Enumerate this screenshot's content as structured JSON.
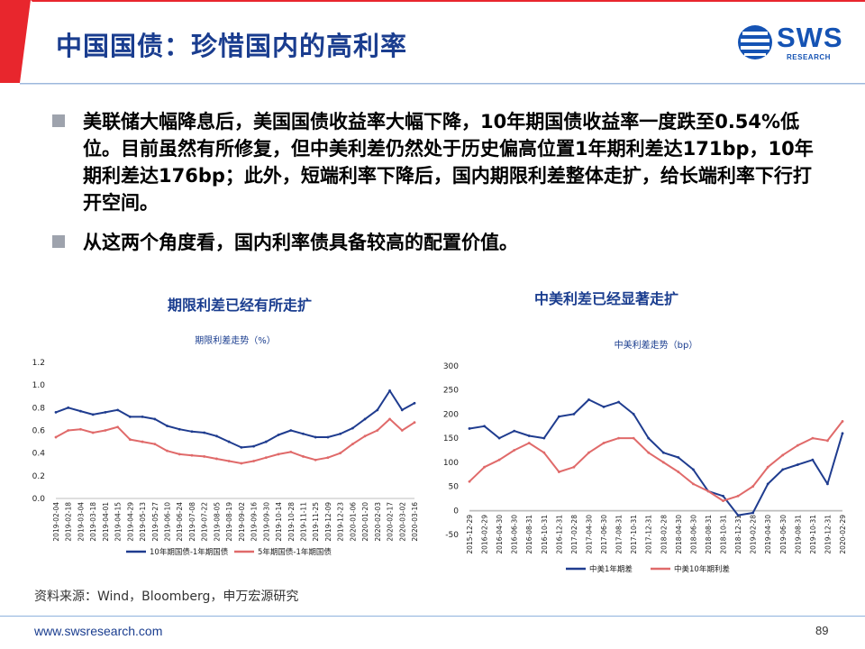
{
  "header": {
    "title": "中国国债：珍惜国内的高利率",
    "logo": {
      "name": "SWS",
      "sub": "RESEARCH"
    }
  },
  "bullets": [
    "美联储大幅降息后，美国国债收益率大幅下降，10年期国债收益率一度跌至0.54%低位。目前虽然有所修复，但中美利差仍然处于历史偏高位置1年期利差达171bp，10年期利差达176bp；此外，短端利率下降后，国内期限利差整体走扩，给长端利率下行打开空间。",
    "从这两个角度看，国内利率债具备较高的配置价值。"
  ],
  "charts": [
    {
      "heading": "期限利差已经有所走扩"
    },
    {
      "heading": "中美利差已经显著走扩"
    }
  ],
  "chart_data": [
    {
      "type": "line",
      "title": "期限利差走势（%）",
      "x": [
        "2019-02-04",
        "2019-02-18",
        "2019-03-04",
        "2019-03-18",
        "2019-04-01",
        "2019-04-15",
        "2019-04-29",
        "2019-05-13",
        "2019-05-27",
        "2019-06-10",
        "2019-06-24",
        "2019-07-08",
        "2019-07-22",
        "2019-08-05",
        "2019-08-19",
        "2019-09-02",
        "2019-09-16",
        "2019-09-30",
        "2019-10-14",
        "2019-10-28",
        "2019-11-11",
        "2019-11-25",
        "2019-12-09",
        "2019-12-23",
        "2020-01-06",
        "2020-01-20",
        "2020-02-03",
        "2020-02-17",
        "2020-03-02",
        "2020-03-16"
      ],
      "ylim": [
        0.0,
        1.2
      ],
      "yticks": [
        "0.0",
        "0.2",
        "0.4",
        "0.6",
        "0.8",
        "1.0",
        "1.2"
      ],
      "series": [
        {
          "name": "10年期国债-1年期国债",
          "color": "#1f3c8f",
          "values": [
            0.76,
            0.8,
            0.77,
            0.74,
            0.76,
            0.78,
            0.72,
            0.72,
            0.7,
            0.64,
            0.61,
            0.59,
            0.58,
            0.55,
            0.5,
            0.45,
            0.46,
            0.5,
            0.56,
            0.6,
            0.57,
            0.54,
            0.54,
            0.57,
            0.62,
            0.7,
            0.78,
            0.95,
            0.78,
            0.84
          ]
        },
        {
          "name": "5年期国债-1年期国债",
          "color": "#e06a6a",
          "values": [
            0.54,
            0.6,
            0.61,
            0.58,
            0.6,
            0.63,
            0.52,
            0.5,
            0.48,
            0.42,
            0.39,
            0.38,
            0.37,
            0.35,
            0.33,
            0.31,
            0.33,
            0.36,
            0.39,
            0.41,
            0.37,
            0.34,
            0.36,
            0.4,
            0.48,
            0.55,
            0.6,
            0.7,
            0.6,
            0.67
          ]
        }
      ]
    },
    {
      "type": "line",
      "title": "中美利差走势（bp）",
      "x": [
        "2015-12-29",
        "2016-02-29",
        "2016-04-30",
        "2016-06-30",
        "2016-08-31",
        "2016-10-31",
        "2016-12-31",
        "2017-02-28",
        "2017-04-30",
        "2017-06-30",
        "2017-08-31",
        "2017-10-31",
        "2017-12-31",
        "2018-02-28",
        "2018-04-30",
        "2018-06-30",
        "2018-08-31",
        "2018-10-31",
        "2018-12-31",
        "2019-02-28",
        "2019-04-30",
        "2019-06-30",
        "2019-08-31",
        "2019-10-31",
        "2019-12-31",
        "2020-02-29"
      ],
      "ylim": [
        -50,
        300
      ],
      "yticks": [
        "-50",
        "0",
        "50",
        "100",
        "150",
        "200",
        "250",
        "300"
      ],
      "series": [
        {
          "name": "中美1年期差",
          "color": "#1f3c8f",
          "values": [
            170,
            175,
            150,
            165,
            155,
            150,
            195,
            200,
            230,
            215,
            225,
            200,
            150,
            120,
            110,
            85,
            40,
            30,
            -10,
            -5,
            55,
            85,
            95,
            105,
            55,
            160
          ]
        },
        {
          "name": "中美10年期利差",
          "color": "#e06a6a",
          "values": [
            60,
            90,
            105,
            125,
            140,
            120,
            80,
            90,
            120,
            140,
            150,
            150,
            120,
            100,
            80,
            55,
            40,
            20,
            30,
            50,
            90,
            115,
            135,
            150,
            145,
            185
          ]
        }
      ]
    }
  ],
  "source": "资料来源：Wind，Bloomberg，申万宏源研究",
  "footer": {
    "url": "www.swsresearch.com",
    "page": "89"
  }
}
